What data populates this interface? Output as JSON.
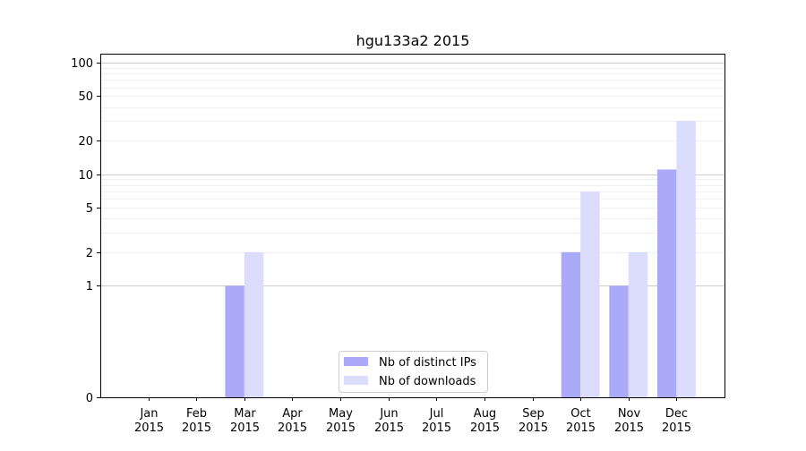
{
  "chart_data": {
    "type": "bar",
    "title": "hgu133a2 2015",
    "xlabel": "",
    "ylabel": "",
    "y_scale": "symlog",
    "ylim": [
      0,
      120
    ],
    "grid": true,
    "legend_position": "lower-center",
    "categories": [
      {
        "month": "Jan",
        "year": "2015"
      },
      {
        "month": "Feb",
        "year": "2015"
      },
      {
        "month": "Mar",
        "year": "2015"
      },
      {
        "month": "Apr",
        "year": "2015"
      },
      {
        "month": "May",
        "year": "2015"
      },
      {
        "month": "Jun",
        "year": "2015"
      },
      {
        "month": "Jul",
        "year": "2015"
      },
      {
        "month": "Aug",
        "year": "2015"
      },
      {
        "month": "Sep",
        "year": "2015"
      },
      {
        "month": "Oct",
        "year": "2015"
      },
      {
        "month": "Nov",
        "year": "2015"
      },
      {
        "month": "Dec",
        "year": "2015"
      }
    ],
    "y_ticks": [
      {
        "value": 0,
        "label": "0"
      },
      {
        "value": 1,
        "label": "1"
      },
      {
        "value": 2,
        "label": "2"
      },
      {
        "value": 5,
        "label": "5"
      },
      {
        "value": 10,
        "label": "10"
      },
      {
        "value": 20,
        "label": "20"
      },
      {
        "value": 50,
        "label": "50"
      },
      {
        "value": 100,
        "label": "100"
      }
    ],
    "series": [
      {
        "name": "Nb of distinct IPs",
        "color": "#aaaaf8",
        "values": [
          0,
          0,
          1,
          0,
          0,
          0,
          0,
          0,
          0,
          2,
          1,
          11
        ]
      },
      {
        "name": "Nb of downloads",
        "color": "#dcdcfc",
        "values": [
          0,
          0,
          2,
          0,
          0,
          0,
          0,
          0,
          0,
          7,
          2,
          30
        ]
      }
    ]
  }
}
